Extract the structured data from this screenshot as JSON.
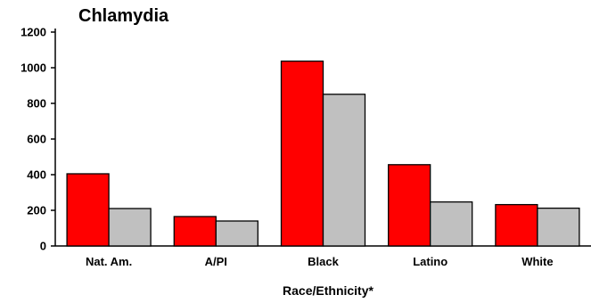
{
  "chart_data": {
    "type": "bar",
    "title": "Chlamydia",
    "xlabel": "Race/Ethnicity*",
    "ylabel": "",
    "categories": [
      "Nat. Am.",
      "A/PI",
      "Black",
      "Latino",
      "White"
    ],
    "series": [
      {
        "values": [
          405,
          165,
          1037,
          456,
          232
        ],
        "color": "#ff0000"
      },
      {
        "values": [
          210,
          140,
          851,
          247,
          212
        ],
        "color": "#c0c0c0"
      }
    ],
    "ylim": [
      0,
      1200
    ],
    "yticks": [
      0,
      200,
      400,
      600,
      800,
      1000,
      1200
    ],
    "grid": false,
    "legend": "none"
  }
}
